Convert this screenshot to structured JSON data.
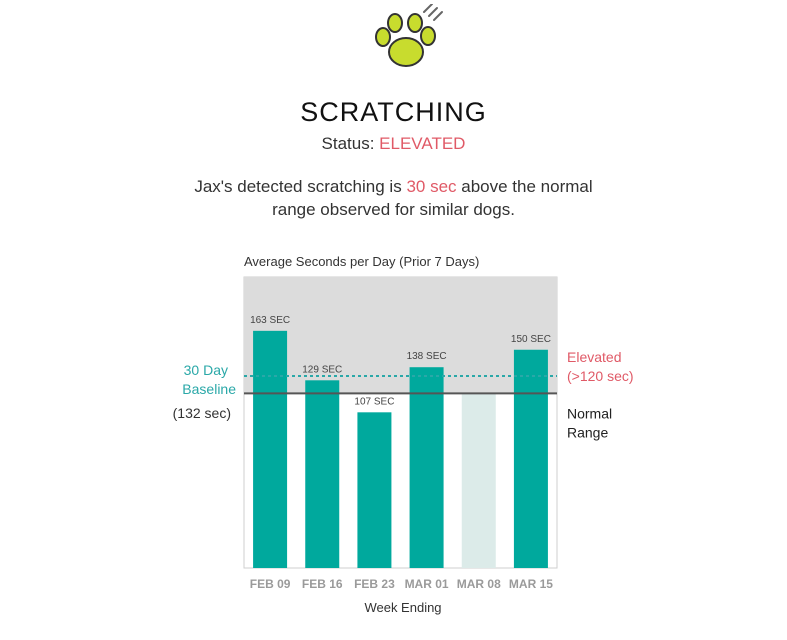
{
  "header": {
    "icon": "paw-icon",
    "title": "SCRATCHING",
    "status_label": "Status:",
    "status_value": "ELEVATED"
  },
  "summary": {
    "part1": "Jax's detected scratching is",
    "highlight": "30 sec",
    "part2": "above the normal",
    "line2": "range observed for similar dogs."
  },
  "colors": {
    "accent": "#e05a67",
    "bar": "#00a99d",
    "bar_current": "#dcebe9",
    "elevated_zone": "#dcdcdc",
    "baseline": "#2aa8a8",
    "normal_line": "#555555",
    "paw_fill": "#c8dc2e"
  },
  "chart_data": {
    "type": "bar",
    "title": "Average Seconds per Day (Prior 7 Days)",
    "xlabel": "Week Ending",
    "ylabel": "",
    "categories": [
      "FEB 09",
      "FEB 16",
      "FEB 23",
      "MAR 01",
      "MAR 08",
      "MAR 15"
    ],
    "values": [
      163,
      129,
      107,
      138,
      120,
      150
    ],
    "value_labels": [
      "163 SEC",
      "129 SEC",
      "107 SEC",
      "138 SEC",
      "",
      "150 SEC"
    ],
    "ylim": [
      0,
      200
    ],
    "baseline": {
      "value": 132,
      "label_line1": "30 Day",
      "label_line2": "Baseline",
      "label_line3": "(132 sec)"
    },
    "elevated_threshold": {
      "value": 120,
      "label_line1": "Elevated",
      "label_line2": "(>120 sec)"
    },
    "normal_zone": {
      "label_line1": "Normal",
      "label_line2": "Range"
    },
    "grid": false,
    "legend": "none"
  }
}
